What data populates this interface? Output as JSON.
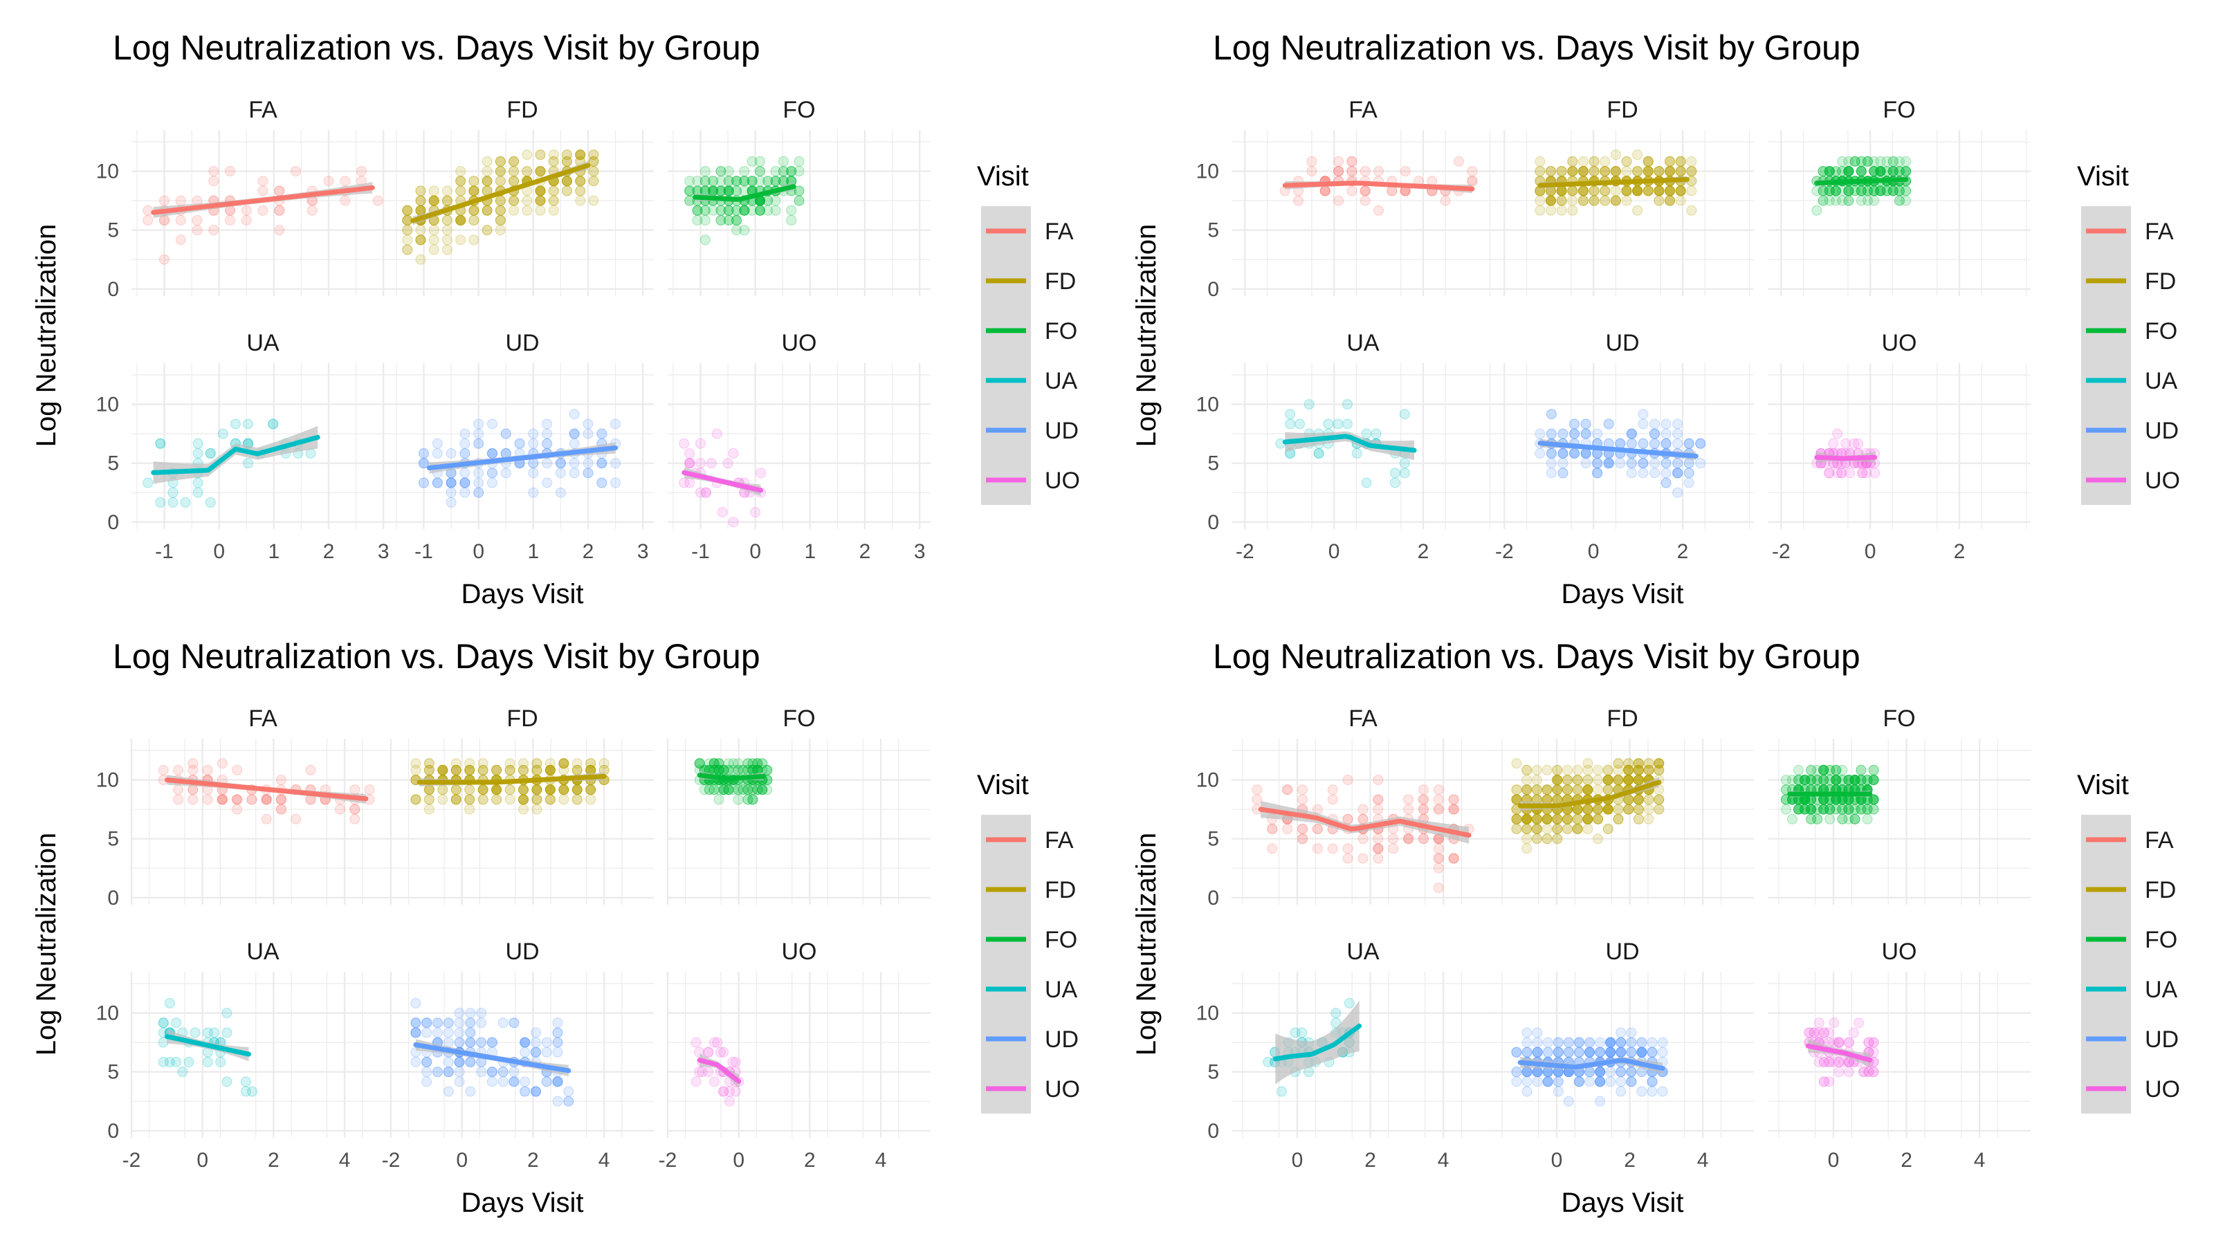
{
  "colors": {
    "FA": "#F8766D",
    "FD": "#B79F00",
    "FO": "#00BA38",
    "UA": "#00BFC4",
    "UD": "#619CFF",
    "UO": "#F564E3",
    "grid": "#ebebeb",
    "ribbon": "#bdbdbd"
  },
  "chart_data": [
    {
      "type": "scatter",
      "title": "Log Neutralization vs. Days Visit by Group",
      "xlabel": "Days Visit",
      "ylabel": "Log Neutralization",
      "legend_title": "Visit",
      "legend_position": "right",
      "grid": true,
      "xlim": [
        -1.6,
        3.2
      ],
      "ylim": [
        -0.6,
        13.5
      ],
      "xticks": [
        -1,
        0,
        1,
        2,
        3
      ],
      "yticks": [
        0,
        5,
        10
      ],
      "series": [
        {
          "name": "FA",
          "trend": [
            [
              -1.2,
              6.5
            ],
            [
              2.8,
              8.6
            ]
          ],
          "band": 0.4,
          "n": 50,
          "xr": [
            -1.3,
            2.9
          ],
          "yc": 7.5,
          "ys": 2.0
        },
        {
          "name": "FD",
          "trend": [
            [
              -1.2,
              5.8
            ],
            [
              2.0,
              10.5
            ]
          ],
          "band": 0.3,
          "n": 260,
          "xr": [
            -1.3,
            2.1
          ],
          "yc": 8.0,
          "ys": 2.0
        },
        {
          "name": "FO",
          "trend": [
            [
              -1.1,
              7.8
            ],
            [
              -0.3,
              7.6
            ],
            [
              0.7,
              8.7
            ]
          ],
          "band": 0.3,
          "n": 180,
          "xr": [
            -1.2,
            0.8
          ],
          "yc": 8.0,
          "ys": 1.7
        },
        {
          "name": "UA",
          "trend": [
            [
              -1.2,
              4.2
            ],
            [
              -0.2,
              4.4
            ],
            [
              0.3,
              6.2
            ],
            [
              0.7,
              5.8
            ],
            [
              1.8,
              7.2
            ]
          ],
          "band": 0.8,
          "n": 35,
          "xr": [
            -1.3,
            1.9
          ],
          "yc": 5.0,
          "ys": 2.0
        },
        {
          "name": "UD",
          "trend": [
            [
              -0.9,
              4.6
            ],
            [
              2.5,
              6.3
            ]
          ],
          "band": 0.4,
          "n": 120,
          "xr": [
            -1.0,
            2.5
          ],
          "yc": 5.5,
          "ys": 2.1
        },
        {
          "name": "UO",
          "trend": [
            [
              -1.3,
              4.2
            ],
            [
              0.1,
              2.7
            ]
          ],
          "band": 0.4,
          "n": 30,
          "xr": [
            -1.3,
            0.1
          ],
          "yc": 3.8,
          "ys": 2.1
        }
      ]
    },
    {
      "type": "scatter",
      "title": "Log Neutralization vs. Days Visit by Group",
      "xlabel": "Days Visit",
      "ylabel": "Log Neutralization",
      "legend_title": "Visit",
      "legend_position": "right",
      "grid": true,
      "xlim": [
        -2.3,
        3.6
      ],
      "ylim": [
        -0.6,
        13.5
      ],
      "xticks": [
        -2,
        0,
        2
      ],
      "yticks": [
        0,
        5,
        10
      ],
      "series": [
        {
          "name": "FA",
          "trend": [
            [
              -1.1,
              8.8
            ],
            [
              0.5,
              9.0
            ],
            [
              3.1,
              8.5
            ]
          ],
          "band": 0.3,
          "n": 60,
          "xr": [
            -1.1,
            3.1
          ],
          "yc": 8.6,
          "ys": 1.3
        },
        {
          "name": "FD",
          "trend": [
            [
              -1.2,
              8.8
            ],
            [
              2.1,
              9.3
            ]
          ],
          "band": 0.25,
          "n": 280,
          "xr": [
            -1.2,
            2.2
          ],
          "yc": 9.0,
          "ys": 1.4
        },
        {
          "name": "FO",
          "trend": [
            [
              -1.2,
              9.0
            ],
            [
              0.8,
              9.3
            ]
          ],
          "band": 0.25,
          "n": 220,
          "xr": [
            -1.2,
            0.8
          ],
          "yc": 9.2,
          "ys": 1.2
        },
        {
          "name": "UA",
          "trend": [
            [
              -1.1,
              6.8
            ],
            [
              -0.5,
              7.0
            ],
            [
              0.3,
              7.3
            ],
            [
              0.8,
              6.5
            ],
            [
              1.8,
              6.1
            ]
          ],
          "band": 0.7,
          "n": 40,
          "xr": [
            -1.2,
            1.8
          ],
          "yc": 6.6,
          "ys": 1.8
        },
        {
          "name": "UD",
          "trend": [
            [
              -1.2,
              6.7
            ],
            [
              2.3,
              5.6
            ]
          ],
          "band": 0.3,
          "n": 160,
          "xr": [
            -1.2,
            2.4
          ],
          "yc": 6.2,
          "ys": 1.8
        },
        {
          "name": "UO",
          "trend": [
            [
              -1.2,
              5.5
            ],
            [
              -0.6,
              5.4
            ],
            [
              0.1,
              5.5
            ]
          ],
          "band": 0.4,
          "n": 60,
          "xr": [
            -1.2,
            0.1
          ],
          "yc": 5.5,
          "ys": 1.2
        }
      ]
    },
    {
      "type": "scatter",
      "title": "Log Neutralization vs. Days Visit by Group",
      "xlabel": "Days Visit",
      "ylabel": "Log Neutralization",
      "legend_title": "Visit",
      "legend_position": "right",
      "grid": true,
      "xlim": [
        -2.0,
        5.4
      ],
      "ylim": [
        -0.6,
        13.5
      ],
      "xticks": [
        -2,
        0,
        2,
        4
      ],
      "yticks": [
        0,
        5,
        10
      ],
      "series": [
        {
          "name": "FA",
          "trend": [
            [
              -1.0,
              10.0
            ],
            [
              4.6,
              8.4
            ]
          ],
          "band": 0.35,
          "n": 70,
          "xr": [
            -1.1,
            4.7
          ],
          "yc": 9.4,
          "ys": 1.4
        },
        {
          "name": "FD",
          "trend": [
            [
              -1.2,
              9.8
            ],
            [
              1.0,
              9.8
            ],
            [
              4.0,
              10.3
            ]
          ],
          "band": 0.3,
          "n": 260,
          "xr": [
            -1.3,
            4.0
          ],
          "yc": 9.6,
          "ys": 1.3
        },
        {
          "name": "FO",
          "trend": [
            [
              -1.1,
              10.4
            ],
            [
              -0.3,
              10.1
            ],
            [
              0.7,
              10.3
            ]
          ],
          "band": 0.3,
          "n": 180,
          "xr": [
            -1.1,
            0.8
          ],
          "yc": 10.0,
          "ys": 1.2
        },
        {
          "name": "UA",
          "trend": [
            [
              -1.0,
              8.0
            ],
            [
              1.3,
              6.5
            ]
          ],
          "band": 0.5,
          "n": 35,
          "xr": [
            -1.1,
            1.4
          ],
          "yc": 7.0,
          "ys": 1.8
        },
        {
          "name": "UD",
          "trend": [
            [
              -1.3,
              7.3
            ],
            [
              3.0,
              5.1
            ]
          ],
          "band": 0.4,
          "n": 150,
          "xr": [
            -1.3,
            3.0
          ],
          "yc": 6.4,
          "ys": 2.2
        },
        {
          "name": "UO",
          "trend": [
            [
              -1.1,
              6.0
            ],
            [
              -0.6,
              5.6
            ],
            [
              0.0,
              4.2
            ]
          ],
          "band": 0.5,
          "n": 30,
          "xr": [
            -1.2,
            0.0
          ],
          "yc": 5.3,
          "ys": 1.6
        }
      ]
    },
    {
      "type": "scatter",
      "title": "Log Neutralization vs. Days Visit by Group",
      "xlabel": "Days Visit",
      "ylabel": "Log Neutralization",
      "legend_title": "Visit",
      "legend_position": "right",
      "grid": true,
      "xlim": [
        -1.8,
        5.4
      ],
      "ylim": [
        -0.6,
        13.5
      ],
      "xticks": [
        0,
        2,
        4
      ],
      "yticks": [
        0,
        5,
        10
      ],
      "series": [
        {
          "name": "FA",
          "trend": [
            [
              -1.0,
              7.5
            ],
            [
              0.5,
              6.8
            ],
            [
              1.5,
              5.8
            ],
            [
              2.8,
              6.5
            ],
            [
              4.7,
              5.3
            ]
          ],
          "band": 0.6,
          "n": 110,
          "xr": [
            -1.1,
            4.7
          ],
          "yc": 6.5,
          "ys": 2.3
        },
        {
          "name": "FD",
          "trend": [
            [
              -1.0,
              7.8
            ],
            [
              0.0,
              7.8
            ],
            [
              1.5,
              8.5
            ],
            [
              2.8,
              9.8
            ]
          ],
          "band": 0.35,
          "n": 420,
          "xr": [
            -1.1,
            2.8
          ],
          "yc": 8.2,
          "ys": 2.0
        },
        {
          "name": "FO",
          "trend": [
            [
              -1.2,
              8.8
            ],
            [
              1.0,
              8.8
            ]
          ],
          "band": 0.25,
          "n": 300,
          "xr": [
            -1.3,
            1.1
          ],
          "yc": 8.8,
          "ys": 1.6
        },
        {
          "name": "UA",
          "trend": [
            [
              -0.6,
              6.1
            ],
            [
              -0.2,
              6.3
            ],
            [
              0.4,
              6.5
            ],
            [
              1.0,
              7.3
            ],
            [
              1.7,
              8.9
            ]
          ],
          "band": 1.8,
          "n": 40,
          "xr": [
            -0.8,
            1.8
          ],
          "yc": 6.5,
          "ys": 1.8
        },
        {
          "name": "UD",
          "trend": [
            [
              -1.0,
              5.8
            ],
            [
              0.5,
              5.4
            ],
            [
              1.8,
              6.0
            ],
            [
              2.9,
              5.3
            ]
          ],
          "band": 0.4,
          "n": 260,
          "xr": [
            -1.1,
            2.9
          ],
          "yc": 5.6,
          "ys": 1.6
        },
        {
          "name": "UO",
          "trend": [
            [
              -0.7,
              7.2
            ],
            [
              0.3,
              6.6
            ],
            [
              1.0,
              6.0
            ]
          ],
          "band": 0.5,
          "n": 70,
          "xr": [
            -0.8,
            1.1
          ],
          "yc": 6.5,
          "ys": 1.6
        }
      ]
    }
  ]
}
